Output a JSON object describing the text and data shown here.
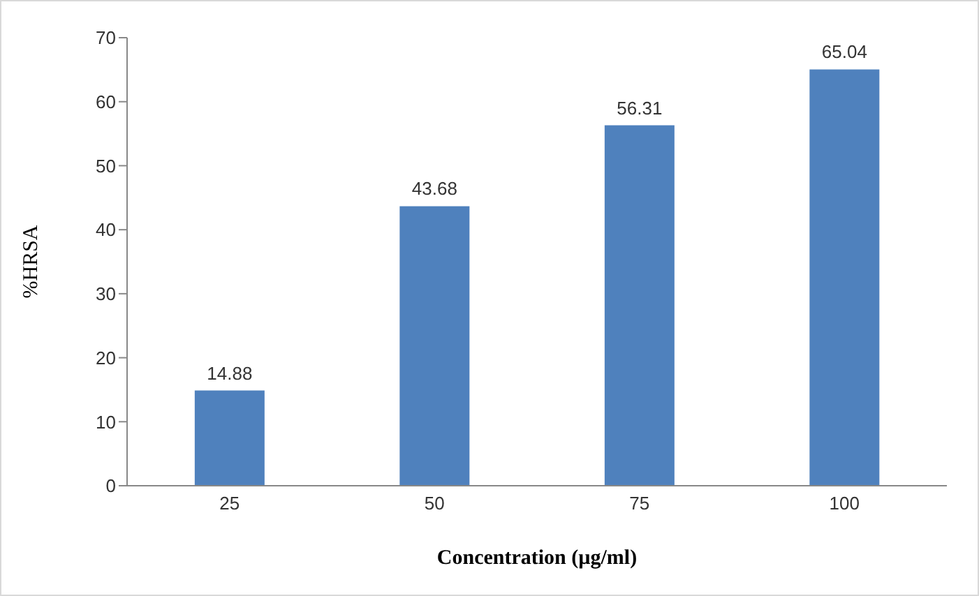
{
  "chart_data": {
    "type": "bar",
    "xlabel": "Concentration (µg/ml)",
    "ylabel": "%HRSA",
    "categories": [
      "25",
      "50",
      "75",
      "100"
    ],
    "values": [
      14.88,
      43.68,
      56.31,
      65.04
    ],
    "color": "#4f81bd",
    "ylim": [
      0,
      70
    ],
    "yticks": [
      0,
      10,
      20,
      30,
      40,
      50,
      60,
      70
    ],
    "grid": false,
    "legend": false,
    "data_labels": true
  }
}
